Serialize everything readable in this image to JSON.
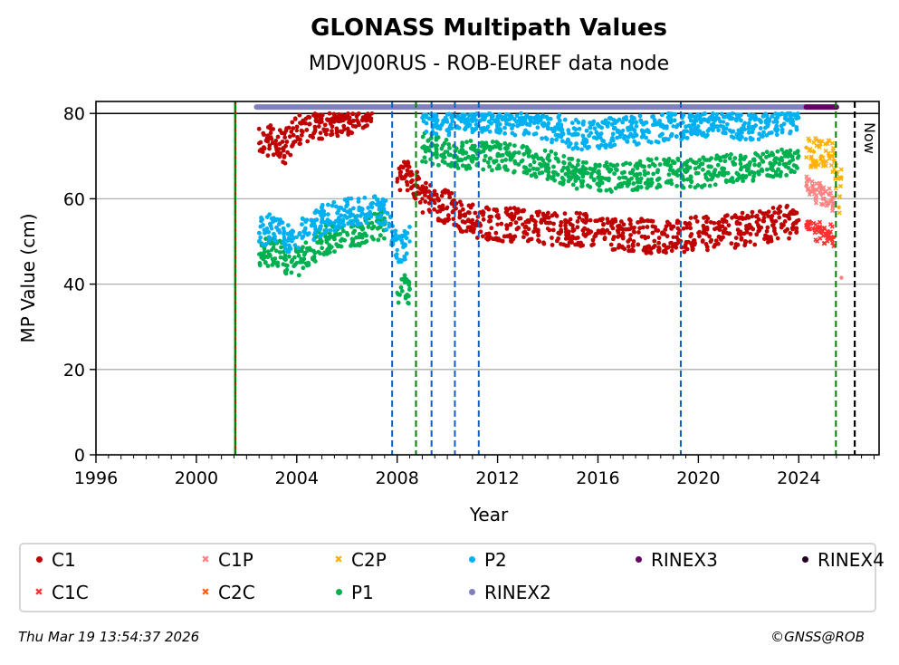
{
  "chart_data": {
    "type": "scatter",
    "title": "GLONASS Multipath Values",
    "subtitle": "MDVJ00RUS - ROB-EUREF data node",
    "xlabel": "Year",
    "ylabel": "MP Value (cm)",
    "xlim": [
      1996,
      2027.2
    ],
    "ylim": [
      0,
      82.8
    ],
    "xticks": [
      1996,
      2000,
      2004,
      2008,
      2012,
      2016,
      2020,
      2024
    ],
    "yticks": [
      0,
      20,
      40,
      60,
      80
    ],
    "grid": "horizontal",
    "hline": 80,
    "now_label": "Now",
    "series": [
      {
        "name": "C1",
        "color": "#c00000",
        "marker": "dot",
        "x": [
          2002.5,
          2003.0,
          2003.5,
          2004.0,
          2005.0,
          2006.0,
          2007.0,
          2008.0,
          2008.5,
          2009.0,
          2009.5,
          2010.0,
          2010.5,
          2011.0,
          2012.0,
          2013.0,
          2014.0,
          2015.0,
          2016.0,
          2017.0,
          2018.0,
          2019.0,
          2020.0,
          2021.0,
          2022.0,
          2023.0,
          2024.0
        ],
        "y": [
          73,
          74,
          72,
          76,
          78,
          79,
          80,
          64,
          66,
          60,
          59,
          58,
          56,
          55,
          54,
          54,
          53,
          53,
          52,
          52,
          51,
          51,
          52,
          52,
          53,
          54,
          55
        ]
      },
      {
        "name": "C1C",
        "color": "#ff3030",
        "marker": "x",
        "x": [
          2024.3,
          2024.6,
          2024.9,
          2025.2,
          2025.4
        ],
        "y": [
          54,
          53,
          52,
          52,
          51
        ]
      },
      {
        "name": "C1P",
        "color": "#ff8080",
        "marker": "x",
        "x": [
          2024.3,
          2024.6,
          2024.9,
          2025.2,
          2025.4,
          2025.7
        ],
        "y": [
          63,
          62,
          61,
          61,
          59,
          41.5
        ]
      },
      {
        "name": "C2C",
        "color": "#ff6010",
        "marker": "x",
        "x": [],
        "y": []
      },
      {
        "name": "C2P",
        "color": "#ffb000",
        "marker": "x",
        "x": [
          2024.3,
          2024.6,
          2024.9,
          2025.2,
          2025.4,
          2025.6,
          2025.7
        ],
        "y": [
          72,
          71,
          70,
          70,
          69,
          58,
          65
        ]
      },
      {
        "name": "P1",
        "color": "#00b050",
        "marker": "dot",
        "x": [
          2002.5,
          2003.0,
          2003.5,
          2004.0,
          2005.0,
          2006.0,
          2007.0,
          2007.5,
          2008.0,
          2008.5,
          2009.0,
          2010.0,
          2011.0,
          2012.0,
          2013.0,
          2014.0,
          2015.0,
          2016.0,
          2017.0,
          2018.0,
          2019.0,
          2020.0,
          2021.0,
          2022.0,
          2023.0,
          2024.0
        ],
        "y": [
          47,
          48,
          46,
          45,
          50,
          52,
          53,
          54,
          38,
          39,
          72,
          71,
          70,
          70,
          69,
          68,
          66,
          65,
          65,
          66,
          66,
          66,
          67,
          67,
          68,
          70
        ]
      },
      {
        "name": "P2",
        "color": "#00b0f0",
        "marker": "dot",
        "x": [
          2002.5,
          2003.0,
          2003.5,
          2004.0,
          2005.0,
          2006.0,
          2007.0,
          2007.5,
          2008.0,
          2008.5,
          2009.0,
          2010.0,
          2011.0,
          2012.0,
          2013.0,
          2014.0,
          2015.0,
          2016.0,
          2017.0,
          2018.0,
          2019.0,
          2020.0,
          2021.0,
          2022.0,
          2023.0,
          2024.0
        ],
        "y": [
          52,
          53,
          51,
          51,
          55,
          57,
          58,
          57,
          48,
          50,
          79,
          78,
          79,
          79,
          78,
          77,
          75,
          75,
          76,
          76,
          77,
          77,
          78,
          77,
          78,
          79
        ]
      },
      {
        "name": "RINEX2",
        "color": "#8080c0",
        "marker": "dot",
        "range": [
          2002.4,
          2024.3
        ],
        "y": 81.5
      },
      {
        "name": "RINEX3",
        "color": "#660066",
        "marker": "dot",
        "range": [
          2024.3,
          2025.5
        ],
        "y": 81.5
      },
      {
        "name": "RINEX4",
        "color": "#200020",
        "marker": "dot",
        "range": [],
        "y": 81.5
      }
    ],
    "vlines": [
      {
        "x": 2001.55,
        "color": "#008000",
        "style": "red-green"
      },
      {
        "x": 2007.8,
        "color": "#1060c0",
        "style": "dashed"
      },
      {
        "x": 2008.75,
        "color": "#008000",
        "style": "dashed"
      },
      {
        "x": 2009.37,
        "color": "#1060c0",
        "style": "dashed"
      },
      {
        "x": 2010.3,
        "color": "#1060c0",
        "style": "dashed"
      },
      {
        "x": 2011.25,
        "color": "#1060c0",
        "style": "dashed"
      },
      {
        "x": 2019.3,
        "color": "#1060c0",
        "style": "dashed"
      },
      {
        "x": 2025.48,
        "color": "#008000",
        "style": "dashed"
      },
      {
        "x": 2026.23,
        "color": "#000000",
        "style": "dashed-now"
      }
    ],
    "legend": {
      "placement": "bottom",
      "items": [
        {
          "label": "C1",
          "color": "#c00000",
          "marker": "dot"
        },
        {
          "label": "C1P",
          "color": "#ff8080",
          "marker": "x"
        },
        {
          "label": "C2P",
          "color": "#ffb000",
          "marker": "x"
        },
        {
          "label": "P2",
          "color": "#00b0f0",
          "marker": "dot"
        },
        {
          "label": "RINEX3",
          "color": "#660066",
          "marker": "dot"
        },
        {
          "label": "RINEX4",
          "color": "#200020",
          "marker": "dot"
        },
        {
          "label": "C1C",
          "color": "#ff3030",
          "marker": "x"
        },
        {
          "label": "C2C",
          "color": "#ff6010",
          "marker": "x"
        },
        {
          "label": "P1",
          "color": "#00b050",
          "marker": "dot"
        },
        {
          "label": "RINEX2",
          "color": "#8080c0",
          "marker": "dot"
        }
      ]
    }
  },
  "footer": {
    "timestamp": "Thu Mar 19 13:54:37 2026",
    "copyright": "©GNSS@ROB"
  }
}
